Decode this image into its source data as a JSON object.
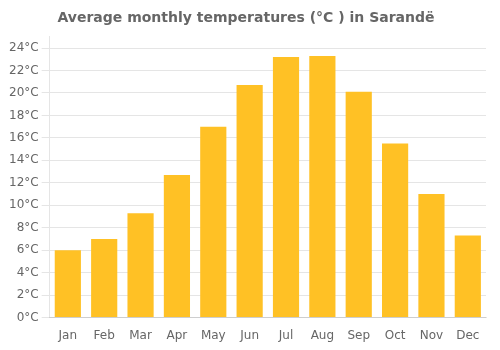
{
  "chart_data": {
    "type": "bar",
    "title": "Average monthly temperatures (°C ) in Sarandë",
    "categories": [
      "Jan",
      "Feb",
      "Mar",
      "Apr",
      "May",
      "Jun",
      "Jul",
      "Aug",
      "Sep",
      "Oct",
      "Nov",
      "Dec"
    ],
    "values": [
      6.0,
      7.0,
      9.3,
      12.7,
      17.0,
      20.7,
      23.2,
      23.3,
      20.1,
      15.5,
      11.0,
      7.3
    ],
    "color": "#FFC125",
    "ylim": [
      0,
      25
    ],
    "yticks": [
      {
        "value": 0,
        "label": "0°C"
      },
      {
        "value": 2,
        "label": "2°C"
      },
      {
        "value": 4,
        "label": "4°C"
      },
      {
        "value": 6,
        "label": "6°C"
      },
      {
        "value": 8,
        "label": "8°C"
      },
      {
        "value": 10,
        "label": "10°C"
      },
      {
        "value": 12,
        "label": "12°C"
      },
      {
        "value": 14,
        "label": "14°C"
      },
      {
        "value": 16,
        "label": "16°C"
      },
      {
        "value": 18,
        "label": "18°C"
      },
      {
        "value": 20,
        "label": "20°C"
      },
      {
        "value": 22,
        "label": "22°C"
      },
      {
        "value": 24,
        "label": "24°C"
      }
    ],
    "grid": true
  }
}
